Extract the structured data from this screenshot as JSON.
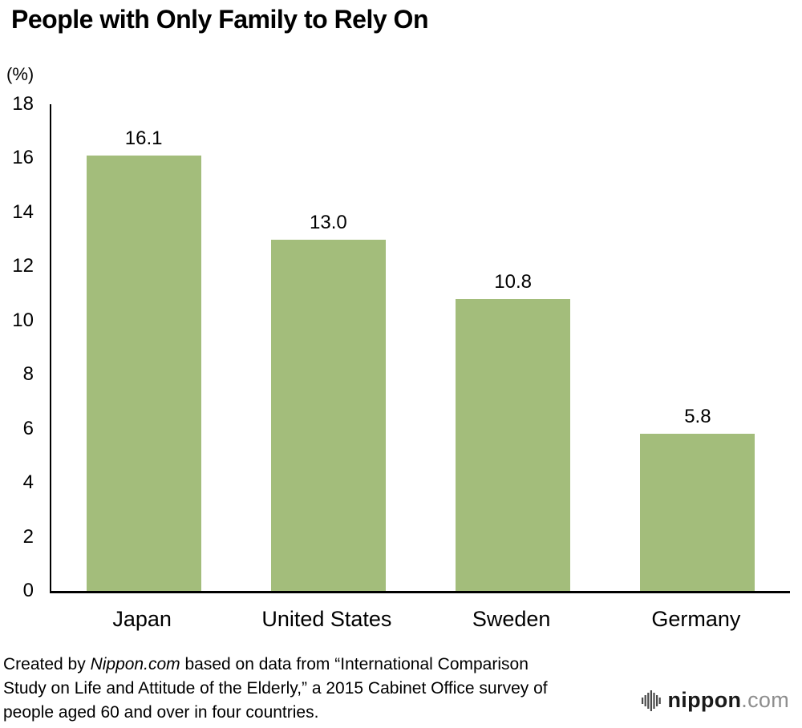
{
  "chart_data": {
    "type": "bar",
    "title": "People with Only Family to Rely On",
    "unit_label": "(%)",
    "categories": [
      "Japan",
      "United States",
      "Sweden",
      "Germany"
    ],
    "values": [
      16.1,
      13.0,
      10.8,
      5.8
    ],
    "value_labels": [
      "16.1",
      "13.0",
      "10.8",
      "5.8"
    ],
    "ylim": [
      0,
      18
    ],
    "ytick_step": 2,
    "bar_color": "#a3bd7b",
    "grid": false,
    "legend": false
  },
  "footer": {
    "source_prefix": "Created by ",
    "source_brand": "Nippon.com",
    "source_rest": " based on data from “International Comparison Study on Life and Attitude of the Elderly,” a 2015 Cabinet Office survey of people aged 60 and over in four countries.",
    "logo_main": "nippon",
    "logo_suffix": ".com"
  }
}
